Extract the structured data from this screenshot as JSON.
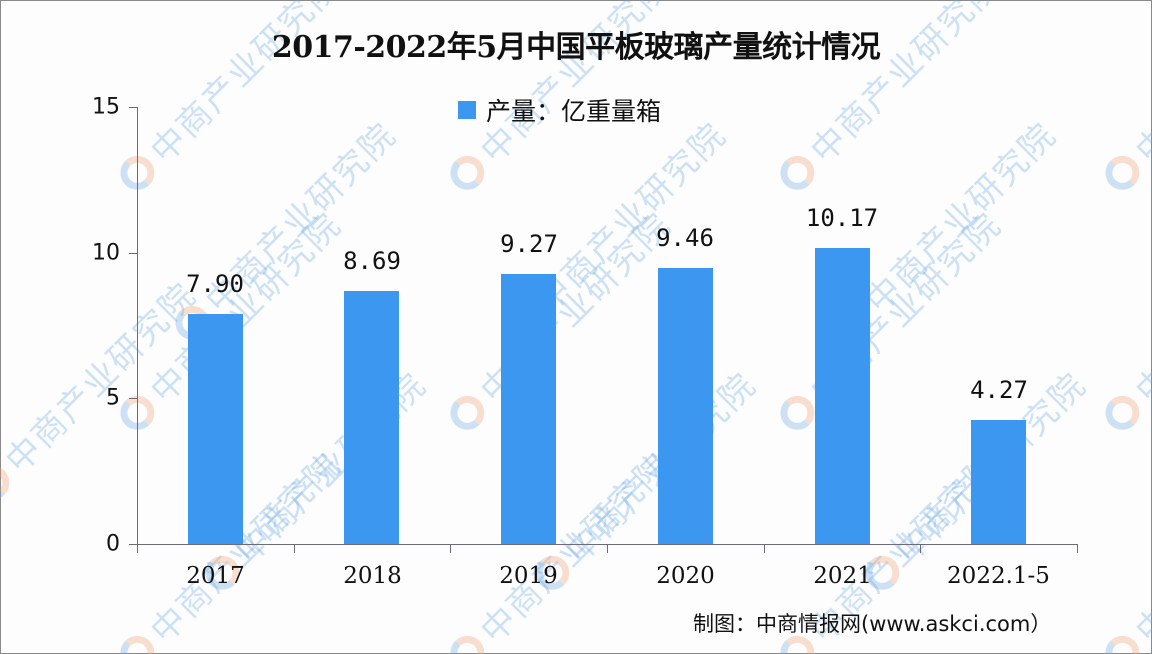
{
  "chart_data": {
    "type": "bar",
    "title": "2017-2022年5月中国平板玻璃产量统计情况",
    "categories": [
      "2017",
      "2018",
      "2019",
      "2020",
      "2021",
      "2022.1-5"
    ],
    "series": [
      {
        "name": "产量：亿重量箱",
        "values": [
          7.9,
          8.69,
          9.27,
          9.46,
          10.17,
          4.27
        ],
        "color": "#3b97f0"
      }
    ],
    "value_labels": [
      "7.90",
      "8.69",
      "9.27",
      "9.46",
      "10.17",
      "4.27"
    ],
    "xlabel": "",
    "ylabel": "",
    "ylim": [
      0,
      15
    ],
    "yticks": [
      0,
      5,
      10,
      15
    ],
    "grid": false,
    "legend_position": "top-center"
  },
  "legend": {
    "label": "产量：亿重量箱",
    "color": "#3b97f0"
  },
  "source": "制图：中商情报网(www.askci.com）",
  "watermark": {
    "text": "中商产业研究院"
  },
  "colors": {
    "bar": "#3b97f0",
    "axis": "#6e6a78",
    "text": "#111111"
  }
}
